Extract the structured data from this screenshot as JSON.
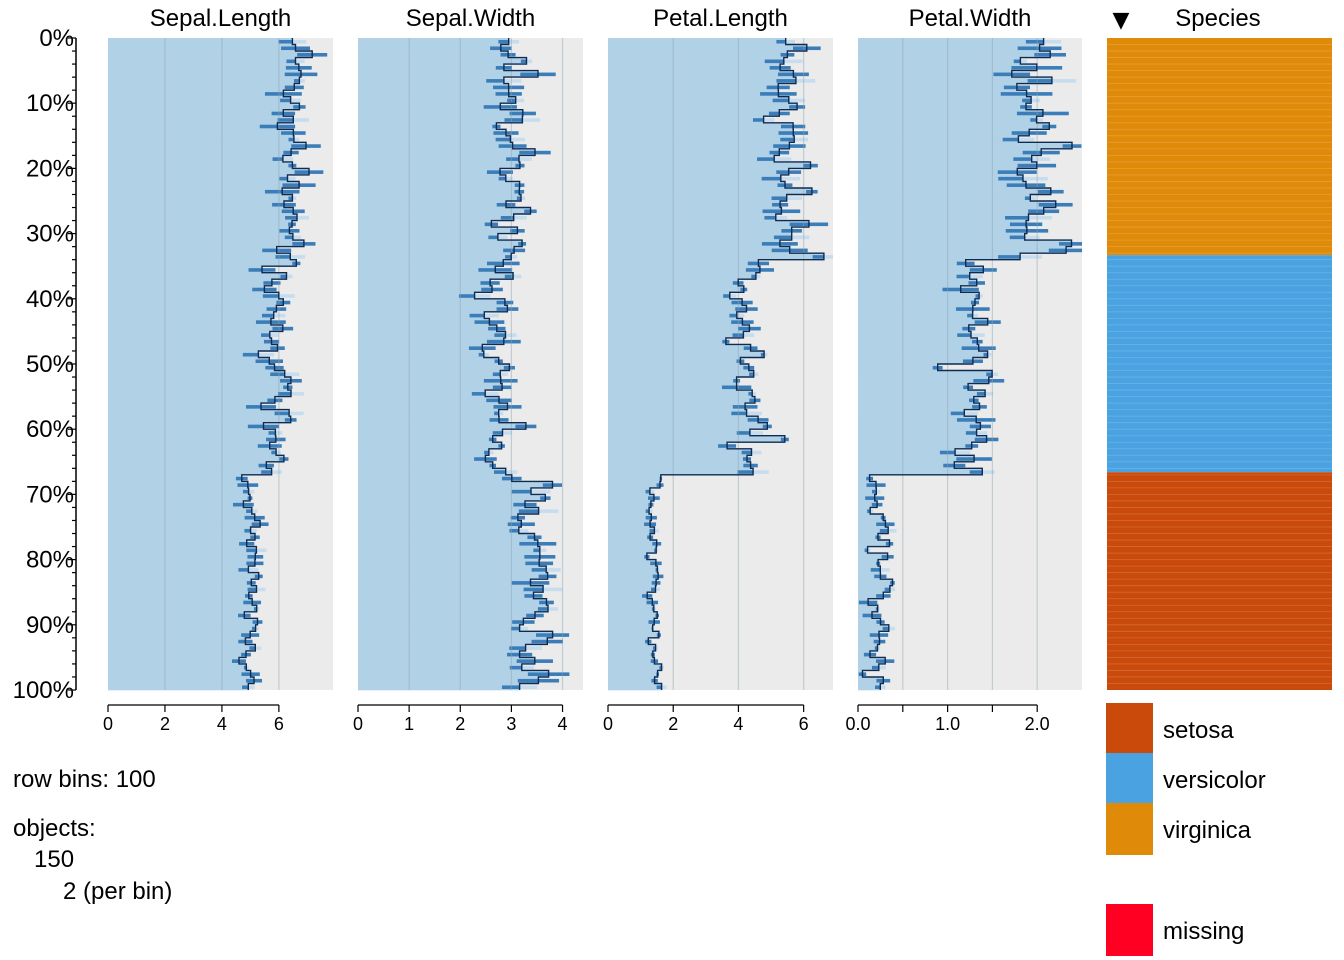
{
  "chart_data": {
    "type": "tableplot",
    "sort_column": "Species",
    "sort_direction": "descending",
    "row_axis": {
      "tick_labels": [
        "0%",
        "10%",
        "20%",
        "30%",
        "40%",
        "50%",
        "60%",
        "70%",
        "80%",
        "90%",
        "100%"
      ]
    },
    "numeric_columns": [
      {
        "name": "Sepal.Length",
        "xlim": [
          0,
          7.9
        ],
        "ticks": [
          0,
          2,
          4,
          6
        ],
        "tick_labels": [
          "0",
          "2",
          "4",
          "6"
        ],
        "grid": [
          2,
          4,
          6
        ],
        "groups": [
          {
            "species": "virginica",
            "mean": 6.6,
            "sd": 0.63
          },
          {
            "species": "versicolor",
            "mean": 5.94,
            "sd": 0.51
          },
          {
            "species": "setosa",
            "mean": 5.0,
            "sd": 0.35
          }
        ]
      },
      {
        "name": "Sepal.Width",
        "xlim": [
          0,
          4.4
        ],
        "ticks": [
          0,
          1,
          2,
          3,
          4
        ],
        "tick_labels": [
          "0",
          "1",
          "2",
          "3",
          "4"
        ],
        "grid": [
          1,
          2,
          3,
          4
        ],
        "groups": [
          {
            "species": "virginica",
            "mean": 2.97,
            "sd": 0.32
          },
          {
            "species": "versicolor",
            "mean": 2.77,
            "sd": 0.31
          },
          {
            "species": "setosa",
            "mean": 3.43,
            "sd": 0.38
          }
        ]
      },
      {
        "name": "Petal.Length",
        "xlim": [
          0,
          6.9
        ],
        "ticks": [
          0,
          2,
          4,
          6
        ],
        "tick_labels": [
          "0",
          "2",
          "4",
          "6"
        ],
        "grid": [
          2,
          4,
          6
        ],
        "groups": [
          {
            "species": "virginica",
            "mean": 5.55,
            "sd": 0.55
          },
          {
            "species": "versicolor",
            "mean": 4.26,
            "sd": 0.47
          },
          {
            "species": "setosa",
            "mean": 1.46,
            "sd": 0.17
          }
        ]
      },
      {
        "name": "Petal.Width",
        "xlim": [
          0,
          2.5
        ],
        "ticks": [
          0,
          0.5,
          1.0,
          1.5,
          2.0
        ],
        "tick_labels": [
          "0.0",
          "",
          "1.0",
          "",
          "2.0"
        ],
        "grid": [
          0.5,
          1.0,
          1.5,
          2.0
        ],
        "groups": [
          {
            "species": "virginica",
            "mean": 2.03,
            "sd": 0.27
          },
          {
            "species": "versicolor",
            "mean": 1.33,
            "sd": 0.2
          },
          {
            "species": "setosa",
            "mean": 0.25,
            "sd": 0.1
          }
        ]
      }
    ],
    "categorical_column": {
      "name": "Species",
      "sorted": true,
      "sort_indicator": "▼",
      "segments": [
        {
          "category": "virginica",
          "share_percent": 33.3
        },
        {
          "category": "versicolor",
          "share_percent": 33.3
        },
        {
          "category": "setosa",
          "share_percent": 33.3
        }
      ]
    },
    "legend": {
      "items": [
        {
          "label": "setosa",
          "color": "#C94A0A"
        },
        {
          "label": "versicolor",
          "color": "#4AA3E0"
        },
        {
          "label": "virginica",
          "color": "#E08A0A"
        }
      ],
      "missing": {
        "label": "missing",
        "color": "#FF0022"
      }
    }
  },
  "info": {
    "row_bins": "row bins: 100",
    "objects_label": "objects:",
    "objects_count": "150",
    "per_bin": "2 (per bin)"
  },
  "colors": {
    "bar_fill": "#B1D1E7",
    "panel_bg": "#EBEBEB",
    "sd_light": "#C5DDEE",
    "sd_dark": "#3A7DB8",
    "mean_mark": "#0F2B52",
    "grid": "#8FA3B0"
  }
}
